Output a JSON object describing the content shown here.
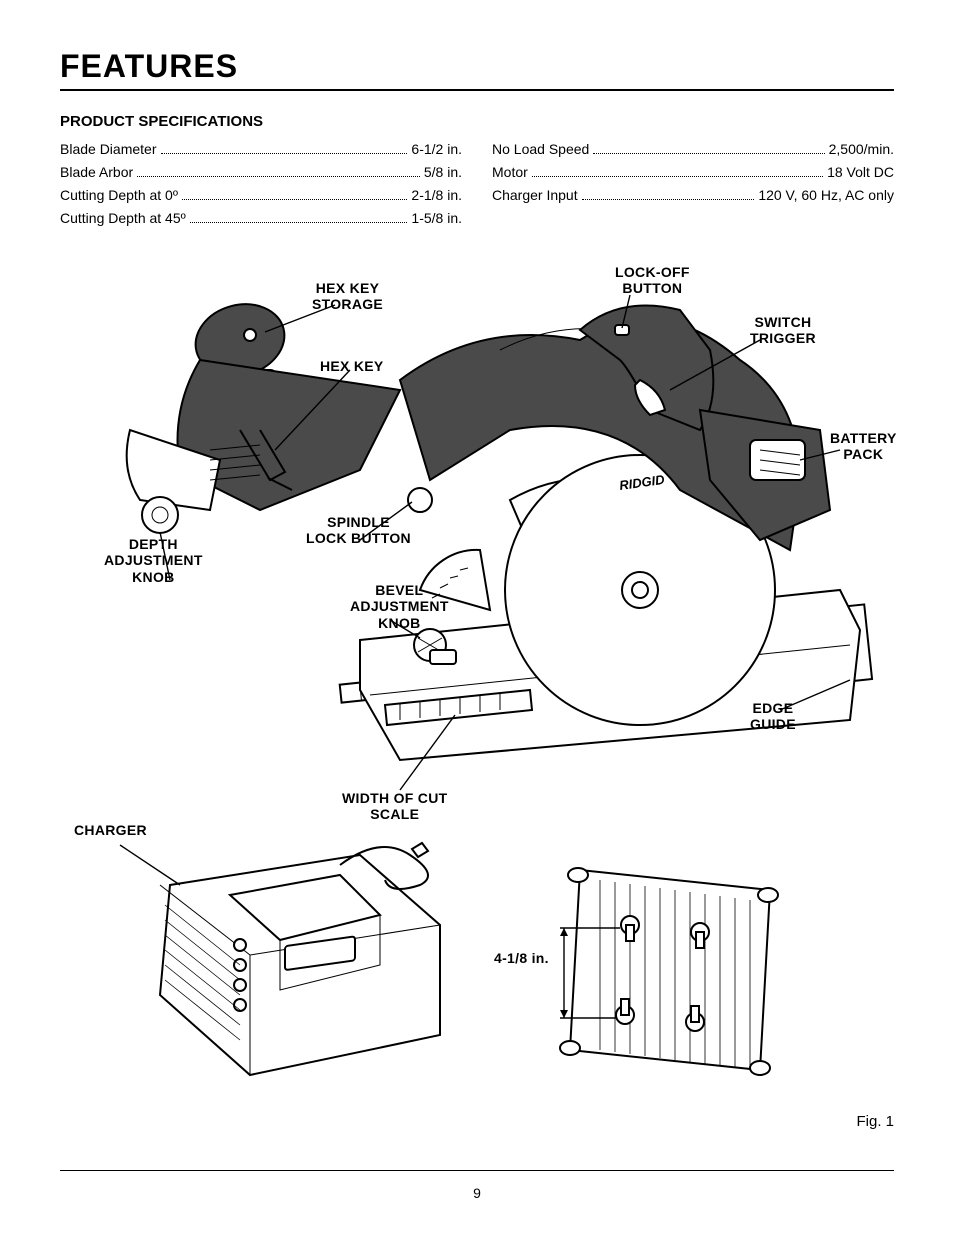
{
  "page": {
    "title": "FEATURES",
    "subtitle": "PRODUCT SPECIFICATIONS",
    "page_number": "9",
    "fig_caption": "Fig. 1"
  },
  "specs": {
    "left": [
      {
        "label": "Blade Diameter",
        "value": "6-1/2 in."
      },
      {
        "label": "Blade Arbor",
        "value": "5/8 in."
      },
      {
        "label": "Cutting Depth at 0º",
        "value": "2-1/8 in."
      },
      {
        "label": "Cutting Depth at 45º",
        "value": "1-5/8 in."
      }
    ],
    "right": [
      {
        "label": "No Load Speed",
        "value": "2,500/min."
      },
      {
        "label": "Motor",
        "value": "18 Volt DC"
      },
      {
        "label": "Charger Input",
        "value": "120 V, 60 Hz, AC only"
      }
    ]
  },
  "callouts": {
    "hex_key_storage": "HEX KEY\nSTORAGE",
    "hex_key": "HEX KEY",
    "lock_off_button": "LOCK-OFF\nBUTTON",
    "switch_trigger": "SWITCH\nTRIGGER",
    "battery_pack": "BATTERY\nPACK",
    "spindle_lock_button": "SPINDLE\nLOCK BUTTON",
    "depth_adjustment_knob": "DEPTH\nADJUSTMENT\nKNOB",
    "bevel_adjustment_knob": "BEVEL\nADJUSTMENT\nKNOB",
    "width_of_cut_scale": "WIDTH OF CUT\nSCALE",
    "edge_guide": "EDGE\nGUIDE",
    "charger": "CHARGER",
    "charger_dim": "4-1/8 in."
  },
  "style": {
    "colors": {
      "bg": "#ffffff",
      "fg": "#000000",
      "gray": "#4a4a4a"
    },
    "fonts": {
      "title_size": 32,
      "body_size": 14,
      "callout_size": 14
    }
  }
}
